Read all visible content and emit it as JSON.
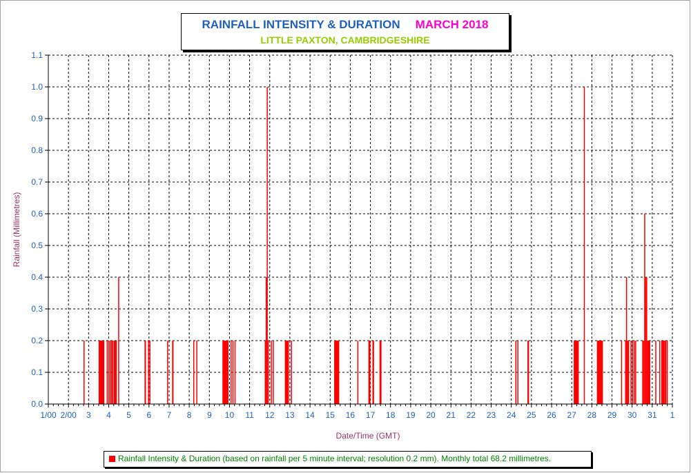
{
  "title": {
    "main": "RAINFALL INTENSITY & DURATION",
    "month": "MARCH 2018",
    "location": "LITTLE PAXTON, CAMBRIDGESHIRE"
  },
  "legend": {
    "label": "Rainfall Intensity & Duration (based on rainfall per 5 minute interval; resolution 0.2 mm). Monthly total 68.2 millimetres."
  },
  "colors": {
    "bars": "#ff0000",
    "title_main": "#1f5fbf",
    "title_month": "#ff00cc",
    "title_location": "#99cc00",
    "axis_title": "#993366",
    "tick_labels": "#1f5fbf",
    "legend_text": "#008000"
  },
  "chart_data": {
    "type": "bar",
    "title": "RAINFALL INTENSITY & DURATION",
    "subtitle": "LITTLE PAXTON, CAMBRIDGESHIRE",
    "xlabel": "Date/Time (GMT)",
    "ylabel": "Rainfall (Millimetres)",
    "x_unit": "day of month (1 = 00:00 on 1 March, 32 = 00:00 on 1 April)",
    "xlim": [
      1,
      32
    ],
    "ylim": [
      0,
      1.1
    ],
    "x_ticks": [
      1,
      2,
      3,
      4,
      5,
      6,
      7,
      8,
      9,
      10,
      11,
      12,
      13,
      14,
      15,
      16,
      17,
      18,
      19,
      20,
      21,
      22,
      23,
      24,
      25,
      26,
      27,
      28,
      29,
      30,
      31,
      32
    ],
    "x_tick_labels": [
      "1/00",
      "2/00",
      "3",
      "4",
      "5",
      "6",
      "7",
      "8",
      "9",
      "10",
      "11",
      "12",
      "13",
      "14",
      "15",
      "16",
      "17",
      "18",
      "19",
      "20",
      "21",
      "22",
      "23",
      "24",
      "25",
      "26",
      "27",
      "28",
      "29",
      "30",
      "31",
      "1"
    ],
    "y_ticks": [
      0.0,
      0.1,
      0.2,
      0.3,
      0.4,
      0.5,
      0.6,
      0.7,
      0.8,
      0.9,
      1.0,
      1.1
    ],
    "y_tick_labels": [
      "0.0",
      "0.1",
      "0.2",
      "0.3",
      "0.4",
      "0.5",
      "0.6",
      "0.7",
      "0.8",
      "0.9",
      "1.0",
      "1.1"
    ],
    "grid": true,
    "legend_position": "bottom",
    "series": [
      {
        "name": "Rainfall Intensity & Duration",
        "bars": [
          {
            "x": 2.75,
            "y": 0.2
          },
          {
            "x": 3.5,
            "x_end": 3.78,
            "y": 0.2
          },
          {
            "x": 3.9,
            "y": 0.2
          },
          {
            "x": 3.98,
            "y": 0.2
          },
          {
            "x": 4.05,
            "y": 0.2
          },
          {
            "x": 4.12,
            "y": 0.2
          },
          {
            "x": 4.18,
            "y": 0.2
          },
          {
            "x": 4.25,
            "x_end": 4.4,
            "y": 0.2
          },
          {
            "x": 4.47,
            "y": 0.4
          },
          {
            "x": 5.78,
            "x_end": 5.85,
            "y": 0.2
          },
          {
            "x": 5.95,
            "y": 0.2
          },
          {
            "x": 6.02,
            "y": 0.2
          },
          {
            "x": 6.9,
            "y": 0.2
          },
          {
            "x": 7.15,
            "x_end": 7.22,
            "y": 0.2
          },
          {
            "x": 8.2,
            "y": 0.2
          },
          {
            "x": 8.35,
            "y": 0.2
          },
          {
            "x": 9.65,
            "x_end": 9.95,
            "y": 0.2
          },
          {
            "x": 10.05,
            "y": 0.2
          },
          {
            "x": 10.15,
            "y": 0.2
          },
          {
            "x": 10.25,
            "y": 0.2
          },
          {
            "x": 11.75,
            "y": 0.2
          },
          {
            "x": 11.8,
            "y": 0.4
          },
          {
            "x": 11.85,
            "y": 1.0
          },
          {
            "x": 11.9,
            "y": 0.2
          },
          {
            "x": 12.05,
            "y": 0.2
          },
          {
            "x": 12.15,
            "y": 0.2
          },
          {
            "x": 12.75,
            "x_end": 12.95,
            "y": 0.2
          },
          {
            "x": 13.05,
            "y": 0.2
          },
          {
            "x": 15.2,
            "x_end": 15.45,
            "y": 0.2
          },
          {
            "x": 16.35,
            "y": 0.2
          },
          {
            "x": 16.9,
            "x_end": 17.0,
            "y": 0.2
          },
          {
            "x": 17.1,
            "x_end": 17.18,
            "y": 0.2
          },
          {
            "x": 17.45,
            "x_end": 17.55,
            "y": 0.2
          },
          {
            "x": 24.2,
            "y": 0.2
          },
          {
            "x": 24.3,
            "y": 0.2
          },
          {
            "x": 24.8,
            "x_end": 24.88,
            "y": 0.2
          },
          {
            "x": 27.1,
            "x_end": 27.35,
            "y": 0.2
          },
          {
            "x": 27.6,
            "y": 1.0
          },
          {
            "x": 28.25,
            "x_end": 28.55,
            "y": 0.2
          },
          {
            "x": 29.45,
            "y": 0.2
          },
          {
            "x": 29.65,
            "y": 0.2
          },
          {
            "x": 29.7,
            "y": 0.4
          },
          {
            "x": 29.75,
            "x_end": 29.85,
            "y": 0.2
          },
          {
            "x": 29.92,
            "y": 0.2
          },
          {
            "x": 30.0,
            "y": 0.2
          },
          {
            "x": 30.08,
            "y": 0.2
          },
          {
            "x": 30.15,
            "y": 0.2
          },
          {
            "x": 30.5,
            "y": 0.2
          },
          {
            "x": 30.55,
            "y": 0.2
          },
          {
            "x": 30.6,
            "y": 0.6
          },
          {
            "x": 30.65,
            "y": 0.4
          },
          {
            "x": 30.7,
            "y": 0.4
          },
          {
            "x": 30.75,
            "y": 0.2
          },
          {
            "x": 30.8,
            "y": 0.2
          },
          {
            "x": 30.85,
            "y": 0.2
          },
          {
            "x": 31.15,
            "y": 0.2
          },
          {
            "x": 31.35,
            "y": 0.2
          },
          {
            "x": 31.45,
            "y": 0.2
          },
          {
            "x": 31.5,
            "y": 0.2
          },
          {
            "x": 31.55,
            "y": 0.2
          },
          {
            "x": 31.6,
            "y": 0.2
          },
          {
            "x": 31.65,
            "y": 0.2
          },
          {
            "x": 31.72,
            "y": 0.2
          }
        ]
      }
    ]
  }
}
